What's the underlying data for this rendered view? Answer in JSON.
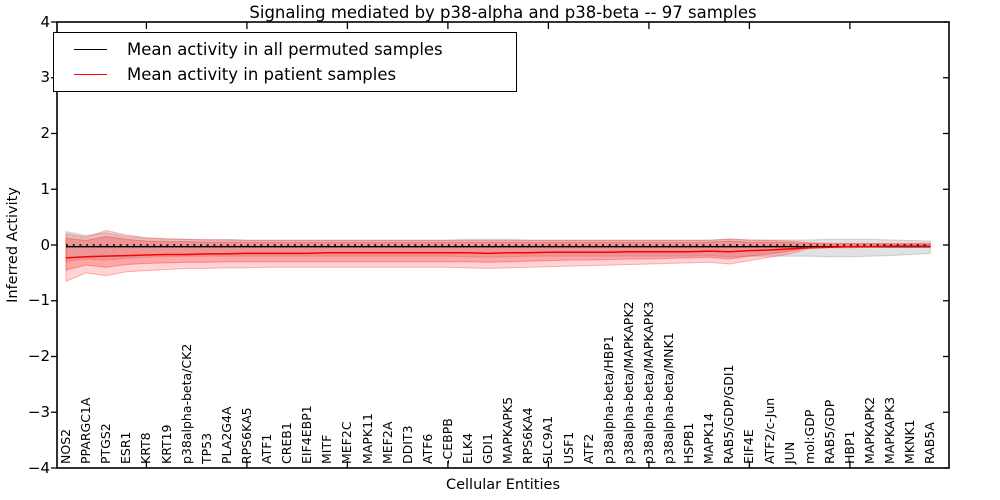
{
  "title": "Signaling mediated by p38-alpha and p38-beta -- 97 samples",
  "legend": {
    "items": [
      {
        "label": "Mean activity in all permuted samples",
        "color": "#000000"
      },
      {
        "label": "Mean activity in patient samples",
        "color": "#ff0000"
      }
    ]
  },
  "axes": {
    "ylabel": "Inferred Activity",
    "xlabel": "Cellular Entities",
    "ytick_labels": [
      "4",
      "3",
      "2",
      "1",
      "0",
      "−1",
      "−2",
      "−3",
      "−4"
    ],
    "ytick_values": [
      4,
      3,
      2,
      1,
      0,
      -1,
      -2,
      -3,
      -4
    ]
  },
  "chart_data": {
    "type": "line",
    "title": "Signaling mediated by p38-alpha and p38-beta -- 97 samples",
    "xlabel": "Cellular Entities",
    "ylabel": "Inferred Activity",
    "ylim": [
      -4,
      4
    ],
    "grid": false,
    "legend_position": "upper left",
    "categories": [
      "NOS2",
      "PPARGC1A",
      "PTGS2",
      "ESR1",
      "KRT8",
      "KRT19",
      "p38alpha-beta/CK2",
      "TP53",
      "PLA2G4A",
      "RPS6KA5",
      "ATF1",
      "CREB1",
      "EIF4EBP1",
      "MITF",
      "MEF2C",
      "MAPK11",
      "MEF2A",
      "DDIT3",
      "ATF6",
      "-CEBPB",
      "ELK4",
      "GDI1",
      "MAPKAPK5",
      "RPS6KA4",
      "SLC9A1",
      "USF1",
      "ATF2",
      "p38alpha-beta/HBP1",
      "p38alpha-beta/MAPKAPK2",
      "p38alpha-beta/MAPKAPK3",
      "p38alpha-beta/MNK1",
      "HSPB1",
      "MAPK14",
      "RAB5/GDP/GDI1",
      "EIF4E",
      "ATF2/c-Jun",
      "JUN",
      "mol:GDP",
      "RAB5/GDP",
      "HBP1",
      "MAPKAPK2",
      "MAPKAPK3",
      "MKNK1",
      "RAB5A"
    ],
    "series": [
      {
        "name": "Mean activity in all permuted samples",
        "color": "#000000",
        "style": "solid",
        "constant_value": -0.03
      },
      {
        "name": "Mean activity in patient samples",
        "color": "#ff0000",
        "style": "solid",
        "values": [
          -0.23,
          -0.21,
          -0.2,
          -0.19,
          -0.18,
          -0.17,
          -0.17,
          -0.16,
          -0.16,
          -0.15,
          -0.15,
          -0.15,
          -0.15,
          -0.14,
          -0.14,
          -0.14,
          -0.14,
          -0.14,
          -0.14,
          -0.14,
          -0.14,
          -0.15,
          -0.14,
          -0.14,
          -0.13,
          -0.13,
          -0.13,
          -0.13,
          -0.12,
          -0.12,
          -0.12,
          -0.12,
          -0.11,
          -0.12,
          -0.1,
          -0.09,
          -0.07,
          -0.05,
          -0.04,
          -0.03,
          -0.03,
          -0.02,
          -0.02,
          -0.02
        ]
      }
    ],
    "zero_line": {
      "value": 0,
      "style": "dotted",
      "color": "#000000"
    },
    "bands": [
      {
        "name": "permuted-range-band",
        "color": "#aaaaaa",
        "opacity": 0.35,
        "upper": [
          0.24,
          0.17,
          0.22,
          0.15,
          0.12,
          0.11,
          0.1,
          0.1,
          0.1,
          0.09,
          0.09,
          0.09,
          0.09,
          0.09,
          0.09,
          0.09,
          0.09,
          0.09,
          0.09,
          0.09,
          0.1,
          0.1,
          0.1,
          0.09,
          0.09,
          0.09,
          0.09,
          0.09,
          0.09,
          0.09,
          0.09,
          0.09,
          0.09,
          0.1,
          0.09,
          0.09,
          0.09,
          0.09,
          0.1,
          0.1,
          0.1,
          0.09,
          0.08,
          0.07
        ],
        "lower": [
          -0.3,
          -0.25,
          -0.27,
          -0.24,
          -0.22,
          -0.21,
          -0.2,
          -0.2,
          -0.2,
          -0.2,
          -0.2,
          -0.2,
          -0.2,
          -0.2,
          -0.2,
          -0.2,
          -0.2,
          -0.2,
          -0.2,
          -0.2,
          -0.21,
          -0.22,
          -0.21,
          -0.2,
          -0.2,
          -0.2,
          -0.2,
          -0.2,
          -0.2,
          -0.2,
          -0.2,
          -0.2,
          -0.19,
          -0.21,
          -0.2,
          -0.2,
          -0.2,
          -0.2,
          -0.21,
          -0.21,
          -0.2,
          -0.19,
          -0.17,
          -0.15
        ]
      },
      {
        "name": "patient-outer-band",
        "color": "#ff3c3c",
        "opacity": 0.22,
        "upper": [
          0.2,
          0.14,
          0.26,
          0.18,
          0.13,
          0.11,
          0.1,
          0.09,
          0.09,
          0.08,
          0.08,
          0.08,
          0.08,
          0.08,
          0.08,
          0.08,
          0.08,
          0.08,
          0.08,
          0.08,
          0.08,
          0.08,
          0.08,
          0.08,
          0.08,
          0.08,
          0.08,
          0.08,
          0.08,
          0.08,
          0.08,
          0.08,
          0.08,
          0.11,
          0.09,
          0.08,
          0.07,
          0.04,
          0.03,
          0.03,
          0.03,
          0.03,
          0.03,
          0.03
        ],
        "lower": [
          -0.65,
          -0.5,
          -0.55,
          -0.48,
          -0.46,
          -0.44,
          -0.42,
          -0.42,
          -0.41,
          -0.41,
          -0.4,
          -0.4,
          -0.4,
          -0.4,
          -0.4,
          -0.4,
          -0.4,
          -0.4,
          -0.4,
          -0.4,
          -0.41,
          -0.42,
          -0.41,
          -0.4,
          -0.39,
          -0.38,
          -0.37,
          -0.36,
          -0.35,
          -0.34,
          -0.33,
          -0.32,
          -0.31,
          -0.34,
          -0.28,
          -0.22,
          -0.16,
          -0.06,
          -0.05,
          -0.05,
          -0.04,
          -0.04,
          -0.04,
          -0.04
        ]
      },
      {
        "name": "patient-inner-band",
        "color": "#ff3c3c",
        "opacity": 0.3,
        "upper": [
          0.12,
          0.08,
          0.15,
          0.1,
          0.07,
          0.06,
          0.06,
          0.05,
          0.05,
          0.05,
          0.05,
          0.05,
          0.05,
          0.05,
          0.05,
          0.05,
          0.05,
          0.05,
          0.05,
          0.05,
          0.05,
          0.05,
          0.05,
          0.05,
          0.05,
          0.05,
          0.05,
          0.05,
          0.05,
          0.05,
          0.05,
          0.05,
          0.05,
          0.07,
          0.05,
          0.05,
          0.04,
          0.03,
          0.02,
          0.02,
          0.02,
          0.02,
          0.02,
          0.02
        ],
        "lower": [
          -0.45,
          -0.36,
          -0.4,
          -0.35,
          -0.33,
          -0.32,
          -0.31,
          -0.31,
          -0.3,
          -0.3,
          -0.3,
          -0.3,
          -0.3,
          -0.3,
          -0.3,
          -0.3,
          -0.3,
          -0.3,
          -0.3,
          -0.3,
          -0.3,
          -0.31,
          -0.3,
          -0.29,
          -0.28,
          -0.27,
          -0.27,
          -0.26,
          -0.25,
          -0.25,
          -0.24,
          -0.23,
          -0.22,
          -0.25,
          -0.2,
          -0.16,
          -0.11,
          -0.04,
          -0.03,
          -0.03,
          -0.03,
          -0.03,
          -0.03,
          -0.03
        ]
      }
    ]
  },
  "colors": {
    "patient_line": "#ff0000",
    "permuted_line": "#000000",
    "frame": "#000000",
    "background": "#ffffff"
  }
}
